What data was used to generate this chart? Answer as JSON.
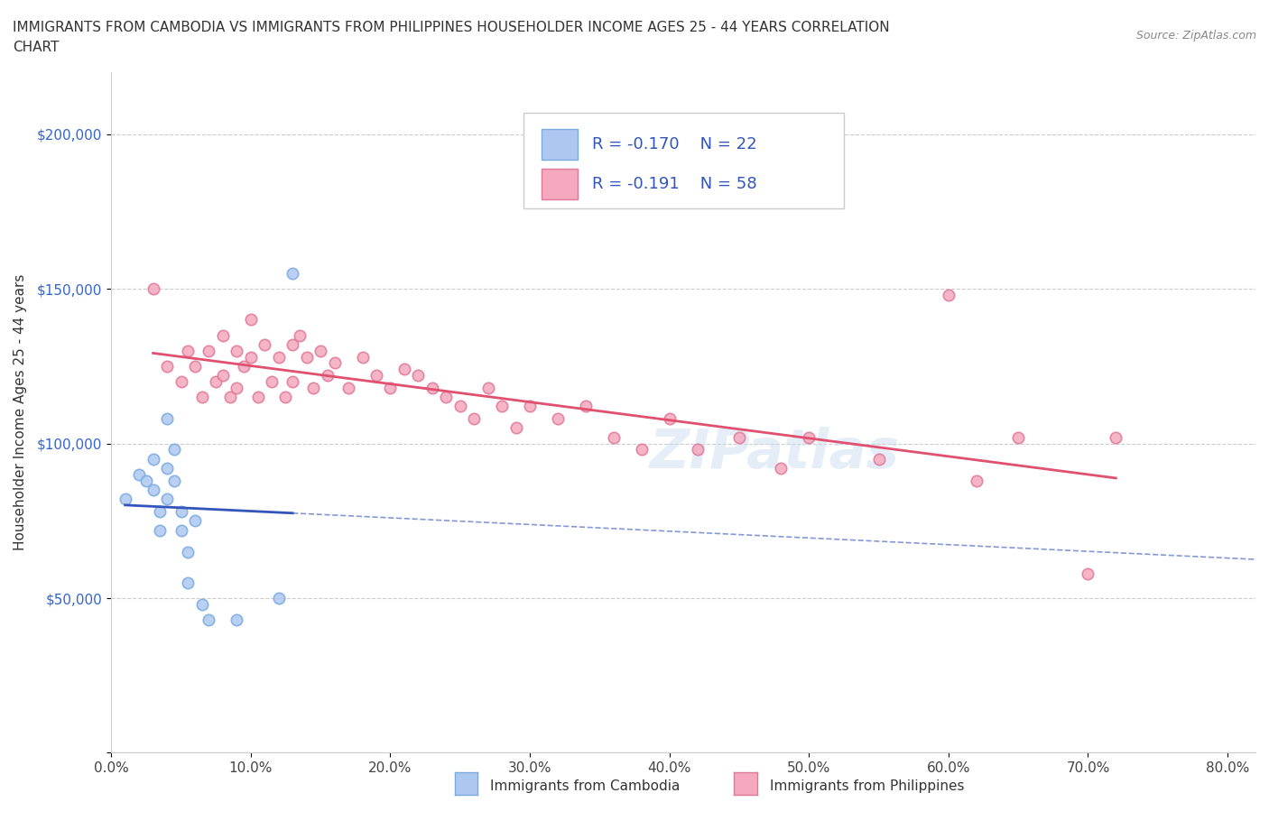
{
  "title_line1": "IMMIGRANTS FROM CAMBODIA VS IMMIGRANTS FROM PHILIPPINES HOUSEHOLDER INCOME AGES 25 - 44 YEARS CORRELATION",
  "title_line2": "CHART",
  "source": "Source: ZipAtlas.com",
  "ylabel": "Householder Income Ages 25 - 44 years",
  "xlim": [
    0.0,
    0.82
  ],
  "ylim": [
    0,
    220000
  ],
  "yticks": [
    0,
    50000,
    100000,
    150000,
    200000
  ],
  "ytick_labels": [
    "",
    "$50,000",
    "$100,000",
    "$150,000",
    "$200,000"
  ],
  "xticks": [
    0.0,
    0.1,
    0.2,
    0.3,
    0.4,
    0.5,
    0.6,
    0.7,
    0.8
  ],
  "xtick_labels": [
    "0.0%",
    "10.0%",
    "20.0%",
    "30.0%",
    "40.0%",
    "50.0%",
    "60.0%",
    "70.0%",
    "80.0%"
  ],
  "cambodia_color": "#adc8f0",
  "cambodia_edge": "#7aaae0",
  "philippines_color": "#f5a8be",
  "philippines_edge": "#e07898",
  "regression_cambodia_color": "#3355bb",
  "regression_philippines_color": "#e05070",
  "watermark": "ZIPatlas",
  "legend_R_cambodia": "R = -0.170",
  "legend_N_cambodia": "N = 22",
  "legend_R_philippines": "R = -0.191",
  "legend_N_philippines": "N = 58",
  "cambodia_x": [
    0.01,
    0.02,
    0.025,
    0.03,
    0.03,
    0.035,
    0.035,
    0.04,
    0.04,
    0.04,
    0.045,
    0.045,
    0.05,
    0.05,
    0.055,
    0.055,
    0.06,
    0.065,
    0.07,
    0.09,
    0.12,
    0.13
  ],
  "cambodia_y": [
    82000,
    90000,
    88000,
    95000,
    85000,
    78000,
    72000,
    92000,
    108000,
    82000,
    98000,
    88000,
    78000,
    72000,
    65000,
    55000,
    75000,
    48000,
    43000,
    43000,
    50000,
    155000
  ],
  "philippines_x": [
    0.03,
    0.04,
    0.05,
    0.055,
    0.06,
    0.065,
    0.07,
    0.075,
    0.08,
    0.08,
    0.085,
    0.09,
    0.09,
    0.095,
    0.1,
    0.1,
    0.105,
    0.11,
    0.115,
    0.12,
    0.125,
    0.13,
    0.13,
    0.135,
    0.14,
    0.145,
    0.15,
    0.155,
    0.16,
    0.17,
    0.18,
    0.19,
    0.2,
    0.21,
    0.22,
    0.23,
    0.24,
    0.25,
    0.26,
    0.27,
    0.28,
    0.29,
    0.3,
    0.32,
    0.34,
    0.36,
    0.38,
    0.4,
    0.42,
    0.45,
    0.48,
    0.5,
    0.55,
    0.6,
    0.62,
    0.65,
    0.7,
    0.72
  ],
  "philippines_y": [
    150000,
    125000,
    120000,
    130000,
    125000,
    115000,
    130000,
    120000,
    135000,
    122000,
    115000,
    130000,
    118000,
    125000,
    140000,
    128000,
    115000,
    132000,
    120000,
    128000,
    115000,
    132000,
    120000,
    135000,
    128000,
    118000,
    130000,
    122000,
    126000,
    118000,
    128000,
    122000,
    118000,
    124000,
    122000,
    118000,
    115000,
    112000,
    108000,
    118000,
    112000,
    105000,
    112000,
    108000,
    112000,
    102000,
    98000,
    108000,
    98000,
    102000,
    92000,
    102000,
    95000,
    148000,
    88000,
    102000,
    58000,
    102000
  ]
}
